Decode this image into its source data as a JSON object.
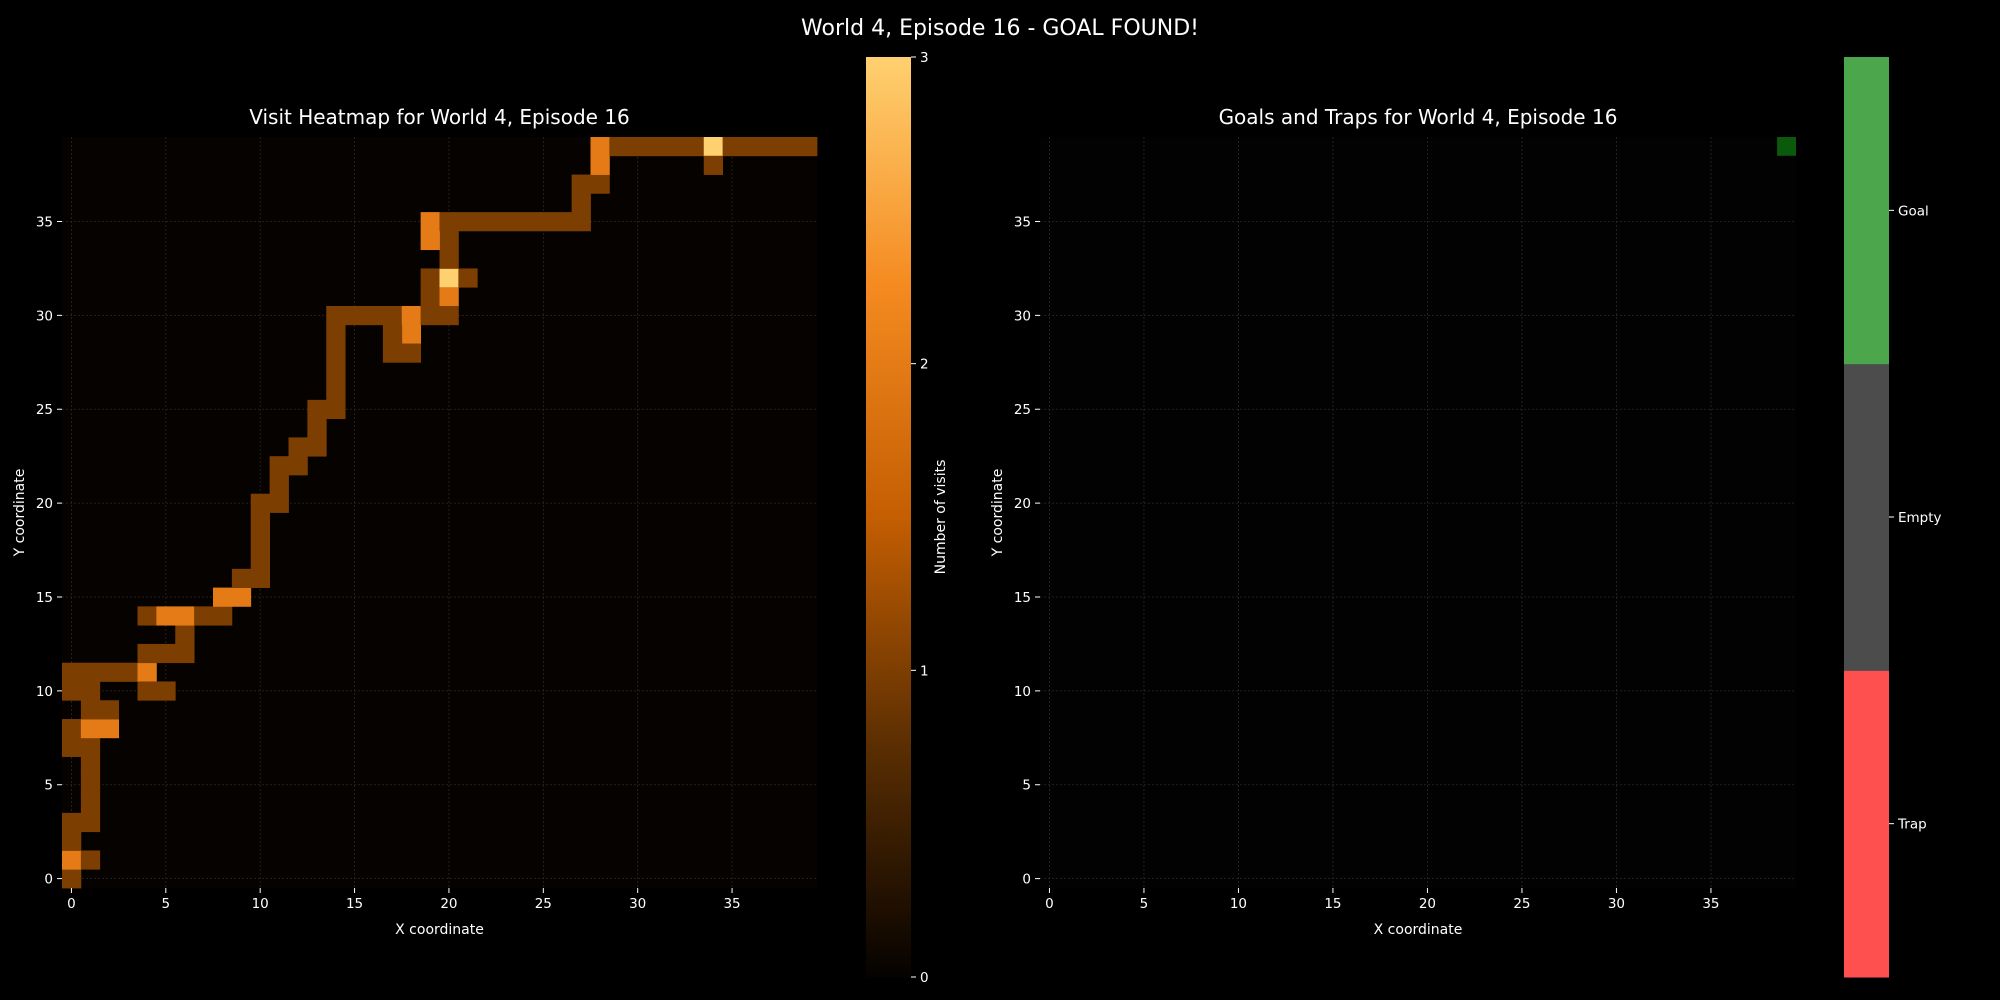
{
  "figure": {
    "suptitle": "World 4, Episode 16 - GOAL FOUND!"
  },
  "chart_data": [
    {
      "type": "heatmap",
      "title": "Visit Heatmap for World 4, Episode 16",
      "xlabel": "X coordinate",
      "ylabel": "Y coordinate",
      "xlim": [
        -0.5,
        39.5
      ],
      "ylim": [
        -0.5,
        39.5
      ],
      "x_ticks": [
        0,
        5,
        10,
        15,
        20,
        25,
        30,
        35
      ],
      "y_ticks": [
        0,
        5,
        10,
        15,
        20,
        25,
        30,
        35
      ],
      "grid": true,
      "colorbar": {
        "label": "Number of visits",
        "min": 0,
        "max": 3,
        "ticks": [
          0,
          1,
          2,
          3
        ],
        "colors": [
          "#050200",
          "#5a2e02",
          "#c45e02",
          "#f48a20",
          "#ffd070"
        ]
      },
      "cells_xy_visits": [
        [
          0,
          0,
          1
        ],
        [
          0,
          1,
          2
        ],
        [
          1,
          1,
          1
        ],
        [
          0,
          2,
          1
        ],
        [
          0,
          3,
          1
        ],
        [
          1,
          3,
          1
        ],
        [
          1,
          4,
          1
        ],
        [
          1,
          5,
          1
        ],
        [
          1,
          6,
          1
        ],
        [
          1,
          7,
          1
        ],
        [
          0,
          7,
          1
        ],
        [
          0,
          8,
          1
        ],
        [
          1,
          8,
          2
        ],
        [
          2,
          8,
          2
        ],
        [
          1,
          9,
          1
        ],
        [
          2,
          9,
          1
        ],
        [
          0,
          10,
          1
        ],
        [
          1,
          10,
          1
        ],
        [
          0,
          11,
          1
        ],
        [
          1,
          11,
          1
        ],
        [
          2,
          11,
          1
        ],
        [
          3,
          11,
          1
        ],
        [
          4,
          11,
          2
        ],
        [
          4,
          10,
          1
        ],
        [
          5,
          10,
          1
        ],
        [
          4,
          12,
          1
        ],
        [
          5,
          12,
          1
        ],
        [
          6,
          12,
          1
        ],
        [
          6,
          13,
          1
        ],
        [
          4,
          14,
          1
        ],
        [
          5,
          14,
          2
        ],
        [
          6,
          14,
          2
        ],
        [
          7,
          14,
          1
        ],
        [
          8,
          14,
          1
        ],
        [
          8,
          15,
          2
        ],
        [
          9,
          15,
          2
        ],
        [
          9,
          16,
          1
        ],
        [
          10,
          16,
          1
        ],
        [
          10,
          17,
          1
        ],
        [
          10,
          18,
          1
        ],
        [
          10,
          19,
          1
        ],
        [
          10,
          20,
          1
        ],
        [
          11,
          20,
          1
        ],
        [
          11,
          21,
          1
        ],
        [
          11,
          22,
          1
        ],
        [
          12,
          22,
          1
        ],
        [
          12,
          23,
          1
        ],
        [
          13,
          23,
          1
        ],
        [
          13,
          24,
          1
        ],
        [
          13,
          25,
          1
        ],
        [
          14,
          25,
          1
        ],
        [
          14,
          26,
          1
        ],
        [
          14,
          27,
          1
        ],
        [
          14,
          28,
          1
        ],
        [
          14,
          29,
          1
        ],
        [
          14,
          30,
          1
        ],
        [
          15,
          30,
          1
        ],
        [
          16,
          30,
          1
        ],
        [
          17,
          30,
          1
        ],
        [
          18,
          30,
          2
        ],
        [
          18,
          29,
          2
        ],
        [
          17,
          29,
          1
        ],
        [
          17,
          28,
          1
        ],
        [
          18,
          28,
          1
        ],
        [
          19,
          30,
          1
        ],
        [
          19,
          31,
          1
        ],
        [
          19,
          32,
          1
        ],
        [
          20,
          32,
          3
        ],
        [
          21,
          32,
          1
        ],
        [
          20,
          31,
          2
        ],
        [
          20,
          30,
          1
        ],
        [
          20,
          33,
          1
        ],
        [
          20,
          34,
          1
        ],
        [
          19,
          34,
          2
        ],
        [
          19,
          35,
          2
        ],
        [
          20,
          35,
          1
        ],
        [
          21,
          35,
          1
        ],
        [
          22,
          35,
          1
        ],
        [
          23,
          35,
          1
        ],
        [
          24,
          35,
          1
        ],
        [
          25,
          35,
          1
        ],
        [
          26,
          35,
          1
        ],
        [
          27,
          35,
          1
        ],
        [
          27,
          36,
          1
        ],
        [
          27,
          37,
          1
        ],
        [
          28,
          37,
          1
        ],
        [
          28,
          38,
          2
        ],
        [
          28,
          39,
          2
        ],
        [
          29,
          39,
          1
        ],
        [
          30,
          39,
          1
        ],
        [
          31,
          39,
          1
        ],
        [
          32,
          39,
          1
        ],
        [
          33,
          39,
          1
        ],
        [
          34,
          39,
          3
        ],
        [
          34,
          38,
          1
        ],
        [
          35,
          39,
          1
        ],
        [
          36,
          39,
          1
        ],
        [
          37,
          39,
          1
        ],
        [
          38,
          39,
          1
        ],
        [
          39,
          39,
          1
        ]
      ]
    },
    {
      "type": "heatmap",
      "title": "Goals and Traps for World 4, Episode 16",
      "xlabel": "X coordinate",
      "ylabel": "Y coordinate",
      "xlim": [
        -0.5,
        39.5
      ],
      "ylim": [
        -0.5,
        39.5
      ],
      "x_ticks": [
        0,
        5,
        10,
        15,
        20,
        25,
        30,
        35
      ],
      "y_ticks": [
        0,
        5,
        10,
        15,
        20,
        25,
        30,
        35
      ],
      "grid": true,
      "colorbar": {
        "categories": [
          "Trap",
          "Empty",
          "Goal"
        ],
        "colors": [
          "#ff5050",
          "#4c4c4c",
          "#4ca64c"
        ]
      },
      "background_color": "#020202",
      "cells": [
        {
          "x": 39,
          "y": 39,
          "kind": "Goal",
          "color": "#0b5a0b"
        }
      ]
    }
  ]
}
